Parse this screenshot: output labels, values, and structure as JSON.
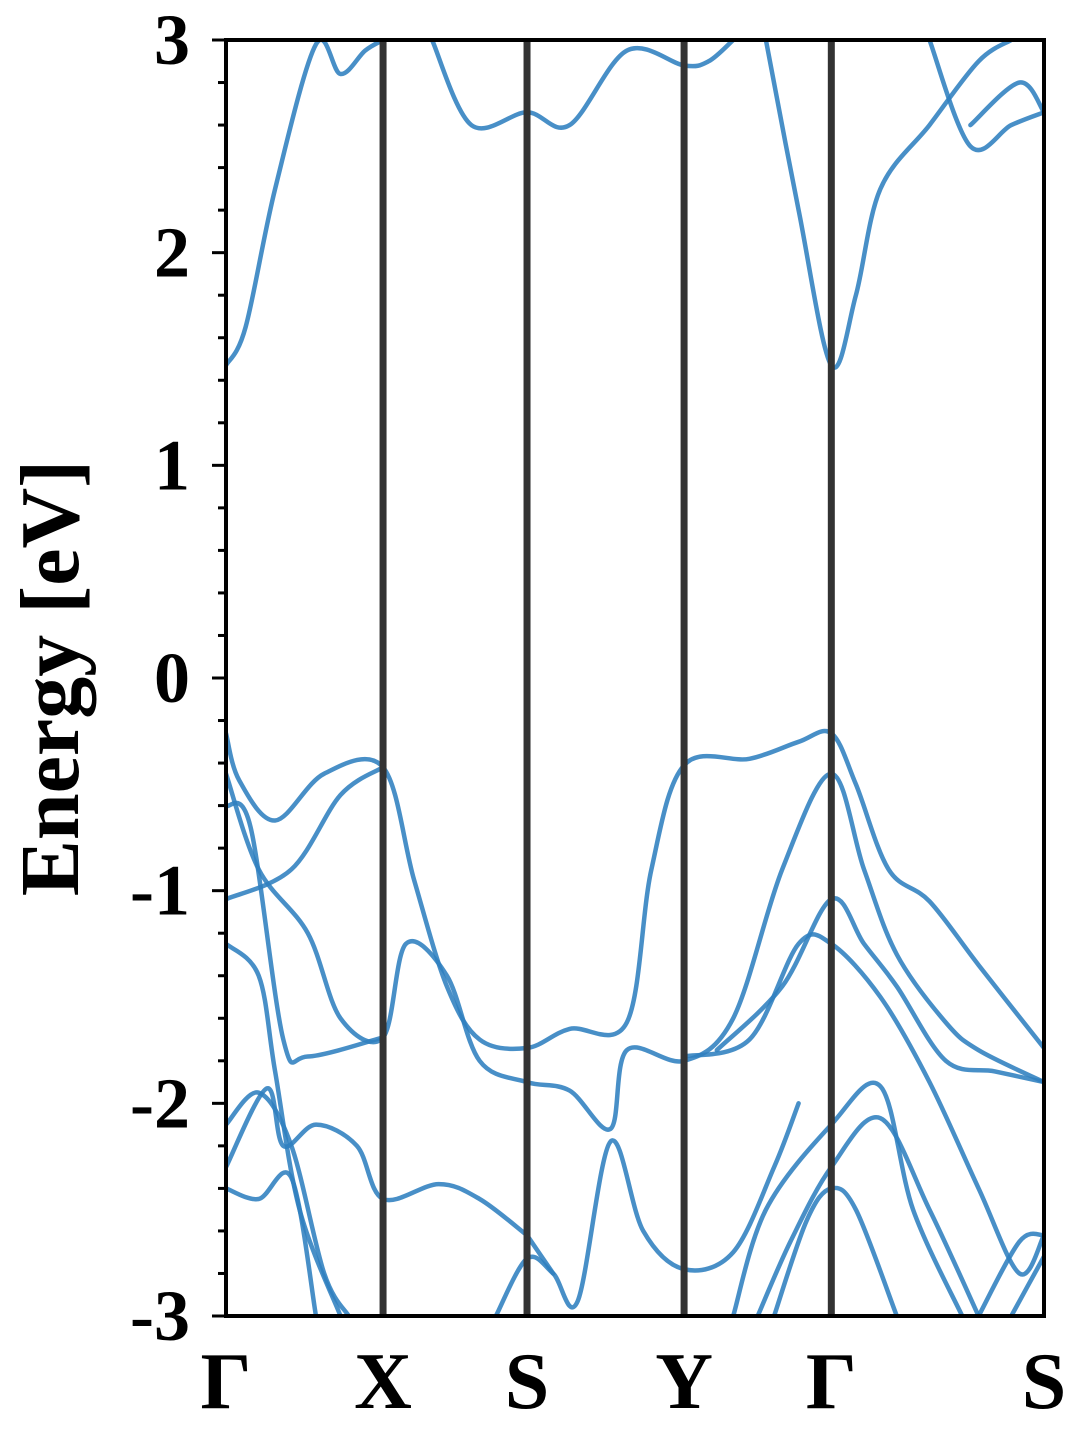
{
  "chart_data": {
    "type": "line",
    "title": "",
    "xlabel": "",
    "ylabel": "Energy [eV]",
    "ylim": [
      -3,
      3
    ],
    "yticks": [
      -3,
      -2,
      -1,
      0,
      1,
      2,
      3
    ],
    "ytick_labels": [
      "-3",
      "-2",
      "-1",
      "0",
      "1",
      "2",
      "3"
    ],
    "x_range": [
      0,
      5.0
    ],
    "high_symmetry_points": [
      {
        "label": "Γ",
        "x": 0.0
      },
      {
        "label": "X",
        "x": 0.96
      },
      {
        "label": "S",
        "x": 1.84
      },
      {
        "label": "Y",
        "x": 2.8
      },
      {
        "label": "Γ",
        "x": 3.7
      },
      {
        "label": "S",
        "x": 5.0
      }
    ],
    "grid": false,
    "legend": "none",
    "band_color": "#2f7fbf",
    "series": [
      {
        "values": [
          [
            0.0,
            1.47
          ],
          [
            0.12,
            1.65
          ],
          [
            0.3,
            2.3
          ],
          [
            0.55,
            2.98
          ],
          [
            0.7,
            2.84
          ],
          [
            0.85,
            2.95
          ],
          [
            0.96,
            3.0
          ]
        ]
      },
      {
        "values": [
          [
            1.26,
            3.0
          ],
          [
            1.5,
            2.6
          ],
          [
            1.84,
            2.66
          ],
          [
            2.1,
            2.6
          ],
          [
            2.45,
            2.95
          ],
          [
            2.8,
            2.88
          ],
          [
            2.95,
            2.9
          ],
          [
            3.1,
            3.0
          ]
        ]
      },
      {
        "values": [
          [
            3.3,
            3.0
          ],
          [
            3.5,
            2.2
          ],
          [
            3.7,
            1.47
          ],
          [
            3.85,
            1.8
          ],
          [
            4.0,
            2.3
          ],
          [
            4.3,
            2.6
          ],
          [
            4.6,
            2.9
          ],
          [
            4.8,
            3.0
          ]
        ]
      },
      {
        "values": [
          [
            4.3,
            3.0
          ],
          [
            4.55,
            2.5
          ],
          [
            4.8,
            2.6
          ],
          [
            5.0,
            2.66
          ]
        ]
      },
      {
        "values": [
          [
            4.55,
            2.6
          ],
          [
            4.85,
            2.8
          ],
          [
            5.0,
            2.66
          ]
        ]
      },
      {
        "values": [
          [
            0.0,
            -0.26
          ],
          [
            0.08,
            -0.48
          ],
          [
            0.3,
            -0.67
          ],
          [
            0.6,
            -0.45
          ],
          [
            0.96,
            -0.42
          ],
          [
            1.15,
            -0.95
          ],
          [
            1.35,
            -1.45
          ],
          [
            1.55,
            -1.7
          ],
          [
            1.84,
            -1.74
          ],
          [
            2.1,
            -1.65
          ],
          [
            2.45,
            -1.62
          ],
          [
            2.6,
            -0.9
          ],
          [
            2.8,
            -0.41
          ],
          [
            3.2,
            -0.38
          ],
          [
            3.5,
            -0.3
          ],
          [
            3.7,
            -0.26
          ],
          [
            3.85,
            -0.5
          ],
          [
            4.05,
            -0.9
          ],
          [
            4.3,
            -1.05
          ],
          [
            4.6,
            -1.35
          ],
          [
            5.0,
            -1.74
          ]
        ]
      },
      {
        "values": [
          [
            0.0,
            -0.45
          ],
          [
            0.2,
            -0.9
          ],
          [
            0.5,
            -1.2
          ],
          [
            0.7,
            -1.6
          ],
          [
            0.96,
            -1.69
          ],
          [
            1.1,
            -1.25
          ],
          [
            1.35,
            -1.4
          ],
          [
            1.55,
            -1.8
          ],
          [
            1.84,
            -1.9
          ],
          [
            2.1,
            -1.94
          ],
          [
            2.35,
            -2.12
          ],
          [
            2.45,
            -1.75
          ],
          [
            2.8,
            -1.8
          ],
          [
            3.1,
            -1.6
          ],
          [
            3.4,
            -0.9
          ],
          [
            3.7,
            -0.45
          ],
          [
            3.9,
            -0.9
          ],
          [
            4.1,
            -1.3
          ],
          [
            4.4,
            -1.62
          ],
          [
            4.6,
            -1.75
          ],
          [
            5.0,
            -1.9
          ]
        ]
      },
      {
        "values": [
          [
            0.0,
            -1.04
          ],
          [
            0.4,
            -0.9
          ],
          [
            0.7,
            -0.55
          ],
          [
            0.96,
            -0.42
          ]
        ]
      },
      {
        "values": [
          [
            0.0,
            -0.6
          ],
          [
            0.15,
            -0.7
          ],
          [
            0.35,
            -1.7
          ],
          [
            0.5,
            -1.78
          ],
          [
            0.96,
            -1.69
          ]
        ]
      },
      {
        "values": [
          [
            0.0,
            -1.25
          ],
          [
            0.2,
            -1.4
          ],
          [
            0.3,
            -1.85
          ],
          [
            0.45,
            -2.5
          ],
          [
            0.7,
            -3.0
          ]
        ]
      },
      {
        "values": [
          [
            0.0,
            -2.1
          ],
          [
            0.2,
            -1.95
          ],
          [
            0.4,
            -2.2
          ],
          [
            0.6,
            -2.8
          ],
          [
            0.75,
            -3.0
          ]
        ]
      },
      {
        "values": [
          [
            0.0,
            -2.3
          ],
          [
            0.25,
            -1.93
          ],
          [
            0.35,
            -2.2
          ],
          [
            0.55,
            -2.1
          ],
          [
            0.8,
            -2.2
          ],
          [
            0.96,
            -2.45
          ],
          [
            1.3,
            -2.38
          ],
          [
            1.55,
            -2.45
          ],
          [
            1.84,
            -2.62
          ]
        ]
      },
      {
        "values": [
          [
            0.0,
            -2.4
          ],
          [
            0.2,
            -2.45
          ],
          [
            0.4,
            -2.35
          ],
          [
            0.55,
            -3.0
          ]
        ]
      },
      {
        "values": [
          [
            1.65,
            -3.0
          ],
          [
            1.84,
            -2.73
          ],
          [
            2.0,
            -2.8
          ],
          [
            2.15,
            -2.93
          ],
          [
            2.35,
            -2.18
          ],
          [
            2.55,
            -2.6
          ],
          [
            2.8,
            -2.78
          ],
          [
            3.1,
            -2.7
          ],
          [
            3.35,
            -2.3
          ],
          [
            3.5,
            -2.0
          ]
        ]
      },
      {
        "values": [
          [
            1.84,
            -2.62
          ],
          [
            2.0,
            -2.8
          ]
        ]
      },
      {
        "values": [
          [
            3.1,
            -3.0
          ],
          [
            3.3,
            -2.5
          ],
          [
            3.7,
            -2.1
          ],
          [
            4.0,
            -1.92
          ],
          [
            4.2,
            -2.5
          ],
          [
            4.5,
            -3.0
          ]
        ]
      },
      {
        "values": [
          [
            3.25,
            -3.0
          ],
          [
            3.45,
            -2.65
          ],
          [
            3.7,
            -2.3
          ],
          [
            4.0,
            -2.07
          ],
          [
            4.3,
            -2.5
          ],
          [
            4.6,
            -3.0
          ]
        ]
      },
      {
        "values": [
          [
            3.35,
            -3.0
          ],
          [
            3.55,
            -2.55
          ],
          [
            3.7,
            -2.4
          ],
          [
            3.85,
            -2.5
          ],
          [
            4.1,
            -3.0
          ]
        ]
      },
      {
        "values": [
          [
            3.0,
            -1.75
          ],
          [
            3.4,
            -1.45
          ],
          [
            3.7,
            -1.04
          ],
          [
            3.9,
            -1.25
          ],
          [
            4.1,
            -1.45
          ],
          [
            4.4,
            -1.8
          ],
          [
            4.7,
            -1.85
          ],
          [
            5.0,
            -1.9
          ]
        ]
      },
      {
        "values": [
          [
            2.8,
            -1.78
          ],
          [
            3.2,
            -1.7
          ],
          [
            3.5,
            -1.25
          ],
          [
            3.7,
            -1.25
          ],
          [
            4.0,
            -1.5
          ],
          [
            4.3,
            -1.9
          ],
          [
            4.6,
            -2.4
          ],
          [
            4.85,
            -2.8
          ],
          [
            5.0,
            -2.62
          ]
        ]
      },
      {
        "values": [
          [
            4.6,
            -3.0
          ],
          [
            4.85,
            -2.65
          ],
          [
            5.0,
            -2.62
          ]
        ]
      },
      {
        "values": [
          [
            4.8,
            -3.0
          ],
          [
            5.0,
            -2.72
          ]
        ]
      }
    ]
  }
}
